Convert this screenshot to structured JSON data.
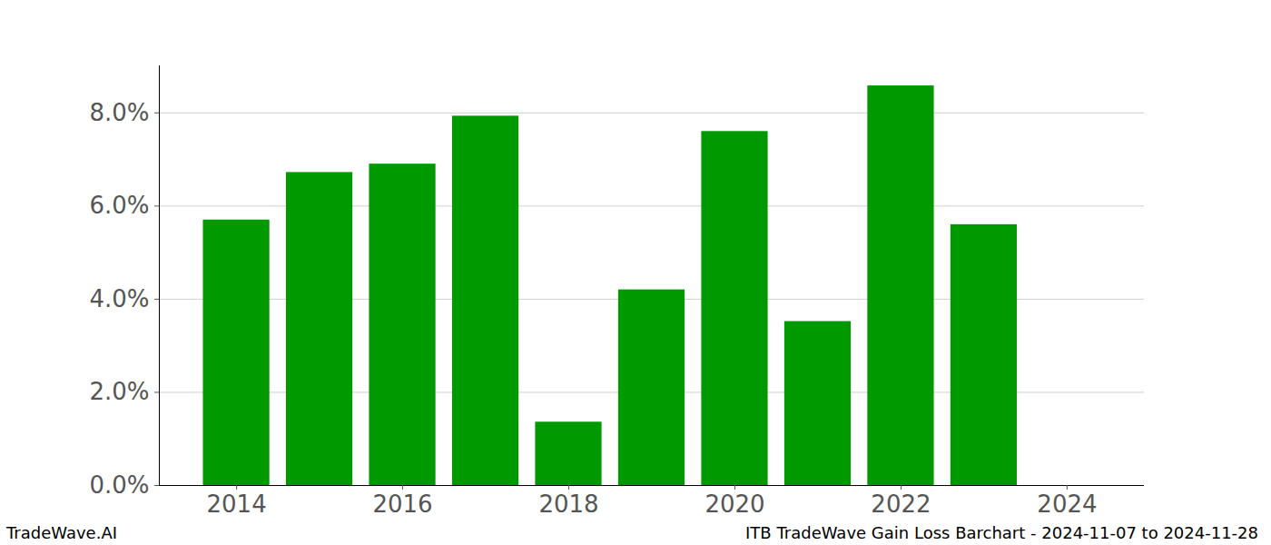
{
  "chart_data": {
    "type": "bar",
    "title": "ITB TradeWave Gain Loss Barchart - 2024-11-07 to 2024-11-28",
    "caption": "TradeWave.AI",
    "x": [
      2014,
      2015,
      2016,
      2017,
      2018,
      2019,
      2020,
      2021,
      2022,
      2023
    ],
    "values": [
      5.7,
      6.72,
      6.9,
      7.93,
      1.36,
      4.2,
      7.6,
      3.52,
      8.58,
      5.6
    ],
    "color": "#009900",
    "xlim": [
      2013.07,
      2024.93
    ],
    "xticks": [
      2014,
      2016,
      2018,
      2020,
      2022,
      2024
    ],
    "ylim": [
      0,
      9.01
    ],
    "yticks": [
      {
        "value": 0,
        "label": "0.0%"
      },
      {
        "value": 2,
        "label": "2.0%"
      },
      {
        "value": 4,
        "label": "4.0%"
      },
      {
        "value": 6,
        "label": "6.0%"
      },
      {
        "value": 8,
        "label": "8.0%"
      }
    ],
    "grid": true
  }
}
